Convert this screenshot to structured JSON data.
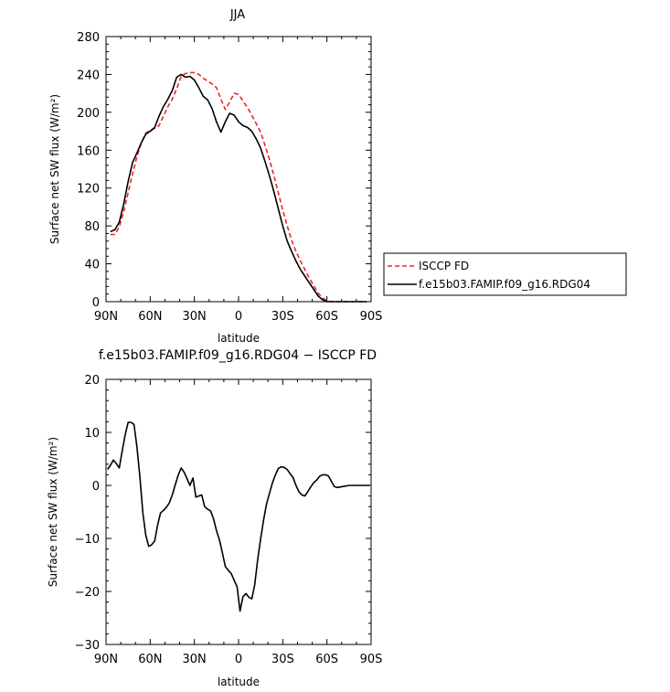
{
  "chart_data": [
    {
      "type": "line",
      "title": "JJA",
      "xlabel": "latitude",
      "ylabel": "Surface net SW flux (W/m²)",
      "xlim": [
        90,
        -90
      ],
      "ylim": [
        0,
        280
      ],
      "xtick_values": [
        90,
        60,
        30,
        0,
        -30,
        -60,
        -90
      ],
      "xtick_labels": [
        "90N",
        "60N",
        "30N",
        "0",
        "30S",
        "60S",
        "90S"
      ],
      "ytick_values": [
        0,
        40,
        80,
        120,
        160,
        200,
        240,
        280
      ],
      "ytick_labels": [
        "0",
        "40",
        "80",
        "120",
        "160",
        "200",
        "240",
        "280"
      ],
      "legend_position": "right",
      "series": [
        {
          "name": "ISCCP FD",
          "color": "#e8262a",
          "dash": true,
          "x": [
            87,
            84,
            81,
            78,
            75,
            72,
            69,
            66,
            63,
            60,
            57,
            54,
            51,
            48,
            45,
            42,
            39,
            36,
            33,
            30,
            27,
            24,
            21,
            18,
            15,
            12,
            9,
            6,
            3,
            0,
            -3,
            -6,
            -9,
            -12,
            -15,
            -18,
            -21,
            -24,
            -27,
            -30,
            -33,
            -36,
            -39,
            -42,
            -45,
            -48,
            -51,
            -54,
            -57,
            -60,
            -63,
            -66,
            -69,
            -72,
            -75,
            -78,
            -81,
            -84,
            -87
          ],
          "y": [
            71,
            71,
            79,
            95,
            115,
            135,
            153,
            168,
            178,
            181,
            183,
            186,
            196,
            206,
            214,
            225,
            238,
            241,
            242,
            242,
            240,
            236,
            233,
            230,
            226,
            214,
            203,
            211,
            220,
            219,
            212,
            205,
            197,
            188,
            179,
            165,
            150,
            133,
            115,
            97,
            80,
            65,
            53,
            43,
            34,
            25,
            17,
            9,
            4,
            1,
            0,
            0,
            0,
            0,
            0,
            0,
            0,
            0,
            0
          ]
        },
        {
          "name": "f.e15b03.FAMIP.f09_g16.RDG04",
          "color": "#000000",
          "dash": false,
          "x": [
            87,
            84,
            81,
            78,
            75,
            72,
            69,
            66,
            63,
            60,
            57,
            54,
            51,
            48,
            45,
            42,
            39,
            36,
            33,
            30,
            27,
            24,
            21,
            18,
            15,
            12,
            9,
            6,
            3,
            0,
            -3,
            -6,
            -9,
            -12,
            -15,
            -18,
            -21,
            -24,
            -27,
            -30,
            -33,
            -36,
            -39,
            -42,
            -45,
            -48,
            -51,
            -54,
            -57,
            -60,
            -63,
            -66,
            -69,
            -72,
            -75,
            -78,
            -81,
            -84,
            -87
          ],
          "y": [
            74,
            76,
            84,
            103,
            127,
            147,
            157,
            168,
            177,
            180,
            184,
            196,
            206,
            214,
            223,
            237,
            240,
            237,
            238,
            234,
            226,
            217,
            213,
            204,
            190,
            179,
            190,
            199,
            197,
            190,
            186,
            184,
            180,
            172,
            162,
            148,
            133,
            116,
            98,
            80,
            64,
            53,
            43,
            34,
            27,
            20,
            13,
            6,
            2,
            0,
            0,
            0,
            0,
            0,
            0,
            0,
            0,
            0,
            0
          ]
        }
      ]
    },
    {
      "type": "line",
      "title": "f.e15b03.FAMIP.f09_g16.RDG04 − ISCCP FD",
      "xlabel": "latitude",
      "ylabel": "Surface net SW flux (W/m²)",
      "xlim": [
        90,
        -90
      ],
      "ylim": [
        -30,
        20
      ],
      "xtick_values": [
        90,
        60,
        30,
        0,
        -30,
        -60,
        -90
      ],
      "xtick_labels": [
        "90N",
        "60N",
        "30N",
        "0",
        "30S",
        "60S",
        "90S"
      ],
      "ytick_values": [
        -30,
        -20,
        -10,
        0,
        10,
        20
      ],
      "ytick_labels": [
        "−30",
        "−20",
        "−10",
        "0",
        "10",
        "20"
      ],
      "series": [
        {
          "color": "#000000",
          "dash": false,
          "x": [
            89,
            87,
            85,
            83,
            81,
            79,
            77,
            75,
            73,
            71,
            69,
            67,
            65,
            63,
            61,
            59,
            57,
            55,
            53,
            51,
            49,
            47,
            45,
            43,
            41,
            39,
            37,
            35,
            33,
            31,
            29,
            27,
            25,
            23,
            21,
            19,
            17,
            15,
            13,
            11,
            9,
            7,
            5,
            3,
            1,
            -1,
            -3,
            -5,
            -7,
            -9,
            -11,
            -13,
            -15,
            -17,
            -19,
            -21,
            -23,
            -25,
            -27,
            -29,
            -31,
            -33,
            -35,
            -37,
            -39,
            -41,
            -43,
            -45,
            -47,
            -49,
            -51,
            -53,
            -55,
            -57,
            -59,
            -61,
            -63,
            -65,
            -67,
            -69,
            -71,
            -73,
            -75,
            -77,
            -79,
            -81,
            -83,
            -85,
            -87,
            -89
          ],
          "y": [
            3,
            3.8,
            4.8,
            4.1,
            3.3,
            6.5,
            9.5,
            11.9,
            11.9,
            11.5,
            7.3,
            1.5,
            -5.2,
            -9.4,
            -11.5,
            -11.2,
            -10.5,
            -7.5,
            -5.2,
            -4.7,
            -4.1,
            -3.3,
            -1.8,
            0.1,
            1.9,
            3.3,
            2.5,
            1.3,
            0,
            1.4,
            -2.2,
            -2.0,
            -1.8,
            -4.0,
            -4.5,
            -4.8,
            -6.3,
            -8.5,
            -10.3,
            -12.7,
            -15.3,
            -16,
            -16.6,
            -17.9,
            -19.1,
            -23.7,
            -21,
            -20.4,
            -21.1,
            -21.4,
            -18.7,
            -14,
            -10,
            -6.5,
            -3.5,
            -1.5,
            0.5,
            2,
            3.2,
            3.5,
            3.4,
            3,
            2.2,
            1.5,
            0,
            -1.2,
            -1.8,
            -2,
            -1.2,
            -0.3,
            0.5,
            1,
            1.7,
            2.0,
            2.0,
            1.8,
            0.8,
            -0.2,
            -0.4,
            -0.3,
            -0.2,
            -0.1,
            0,
            0,
            0,
            0,
            0,
            0,
            0,
            0
          ]
        }
      ]
    }
  ]
}
